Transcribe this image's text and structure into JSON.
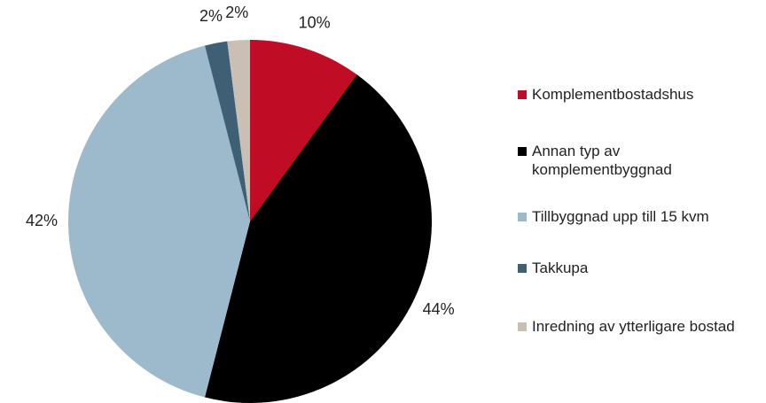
{
  "chart_data": {
    "type": "pie",
    "categories": [
      "Komplementbostadshus",
      "Annan typ av komplementbyggnad",
      "Tillbyggnad upp till 15 kvm",
      "Takkupa",
      "Inredning av ytterligare bostad"
    ],
    "values": [
      10,
      44,
      42,
      2,
      2
    ],
    "value_labels": [
      "10%",
      "44%",
      "42%",
      "2%",
      "2%"
    ],
    "colors": [
      "#c00c24",
      "#000000",
      "#9db9cc",
      "#3f5f75",
      "#cbbfb3"
    ],
    "legend": "right"
  }
}
